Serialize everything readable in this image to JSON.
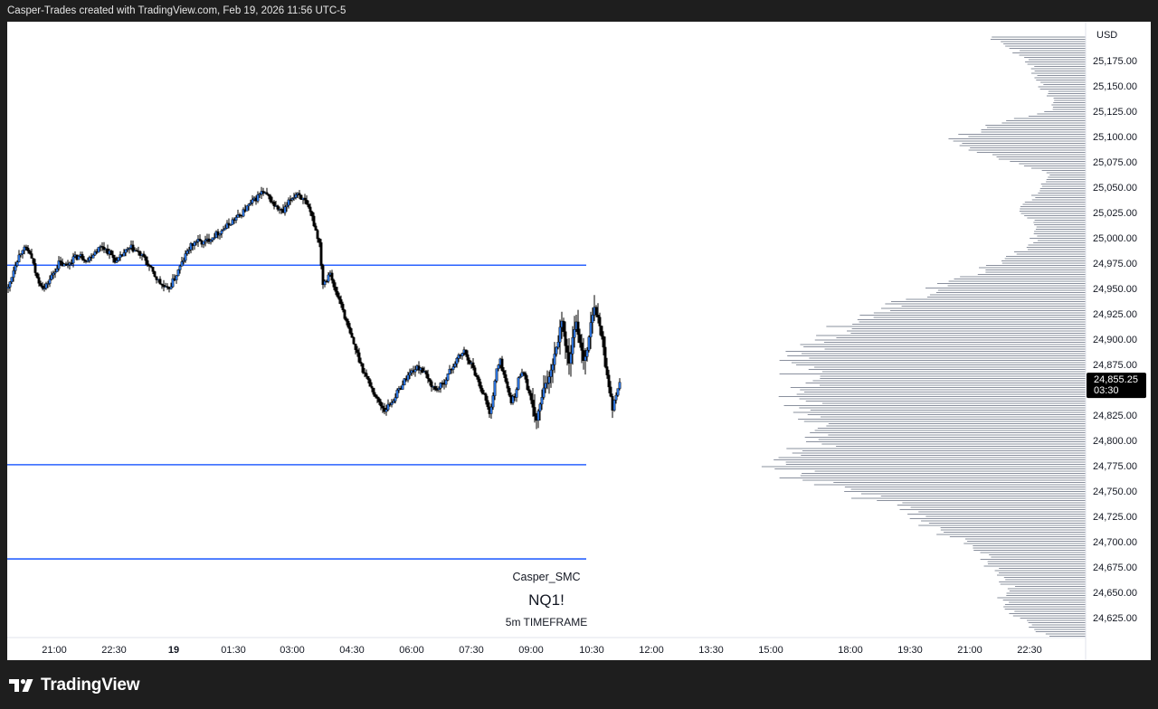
{
  "header": {
    "caption": "Casper-Trades created with TradingView.com, Feb 19, 2026 11:56 UTC-5"
  },
  "footer": {
    "brand": "TradingView",
    "logo_icon": "tradingview-logo-icon"
  },
  "watermark": {
    "author": "Casper_SMC",
    "symbol": "NQ1!",
    "timeframe": "5m TIMEFRAME"
  },
  "price_axis": {
    "currency": "USD",
    "current_price": "24,855.25",
    "countdown": "03:30"
  },
  "colors": {
    "level_line": "#2962ff",
    "bull_body": "#2a6fd6",
    "bear_body": "#000000",
    "wick": "#000000",
    "volume_profile": "#8a909e",
    "price_tag_bg": "#000000"
  },
  "chart_data": {
    "type": "candlestick",
    "symbol": "NQ1!",
    "interval": "5m",
    "y_ticks": [
      25175,
      25150,
      25125,
      25100,
      25075,
      25050,
      25025,
      25000,
      24975,
      24950,
      24925,
      24900,
      24875,
      24825,
      24800,
      24775,
      24750,
      24725,
      24700,
      24675,
      24650,
      24625
    ],
    "y_tick_labels": [
      "25,175.00",
      "25,150.00",
      "25,125.00",
      "25,100.00",
      "25,075.00",
      "25,050.00",
      "25,025.00",
      "25,000.00",
      "24,975.00",
      "24,950.00",
      "24,925.00",
      "24,900.00",
      "24,875.00",
      "24,825.00",
      "24,800.00",
      "24,775.00",
      "24,750.00",
      "24,725.00",
      "24,700.00",
      "24,675.00",
      "24,650.00",
      "24,625.00"
    ],
    "ylim": [
      24605,
      25200
    ],
    "x_ticks": [
      {
        "label": "21:00",
        "bold": false
      },
      {
        "label": "22:30",
        "bold": false
      },
      {
        "label": "19",
        "bold": true
      },
      {
        "label": "01:30",
        "bold": false
      },
      {
        "label": "03:00",
        "bold": false
      },
      {
        "label": "04:30",
        "bold": false
      },
      {
        "label": "06:00",
        "bold": false
      },
      {
        "label": "07:30",
        "bold": false
      },
      {
        "label": "09:00",
        "bold": false
      },
      {
        "label": "10:30",
        "bold": false
      },
      {
        "label": "12:00",
        "bold": false
      },
      {
        "label": "13:30",
        "bold": false
      },
      {
        "label": "15:00",
        "bold": false
      },
      {
        "label": "18:00",
        "bold": false
      },
      {
        "label": "19:30",
        "bold": false
      },
      {
        "label": "21:00",
        "bold": false
      },
      {
        "label": "22:30",
        "bold": false
      }
    ],
    "horizontal_levels": [
      24973,
      24776,
      24683
    ],
    "price_path": [
      [
        0,
        24950
      ],
      [
        4,
        24975
      ],
      [
        8,
        24990
      ],
      [
        12,
        24985
      ],
      [
        16,
        24960
      ],
      [
        20,
        24950
      ],
      [
        24,
        24962
      ],
      [
        28,
        24975
      ],
      [
        32,
        24972
      ],
      [
        36,
        24980
      ],
      [
        40,
        24982
      ],
      [
        44,
        24978
      ],
      [
        48,
        24987
      ],
      [
        52,
        24992
      ],
      [
        56,
        24985
      ],
      [
        60,
        24976
      ],
      [
        64,
        24985
      ],
      [
        68,
        24990
      ],
      [
        72,
        24985
      ],
      [
        76,
        24978
      ],
      [
        80,
        24965
      ],
      [
        84,
        24955
      ],
      [
        88,
        24948
      ],
      [
        92,
        24960
      ],
      [
        96,
        24975
      ],
      [
        100,
        24990
      ],
      [
        104,
        24997
      ],
      [
        108,
        24995
      ],
      [
        112,
        25000
      ],
      [
        116,
        25005
      ],
      [
        120,
        25010
      ],
      [
        124,
        25017
      ],
      [
        128,
        25022
      ],
      [
        132,
        25030
      ],
      [
        136,
        25037
      ],
      [
        140,
        25045
      ],
      [
        144,
        25040
      ],
      [
        148,
        25030
      ],
      [
        152,
        25025
      ],
      [
        156,
        25038
      ],
      [
        160,
        25045
      ],
      [
        164,
        25035
      ],
      [
        168,
        25020
      ],
      [
        172,
        24995
      ],
      [
        174,
        24955
      ],
      [
        176,
        24960
      ],
      [
        178,
        24968
      ],
      [
        180,
        24950
      ],
      [
        184,
        24935
      ],
      [
        188,
        24910
      ],
      [
        192,
        24890
      ],
      [
        196,
        24870
      ],
      [
        200,
        24855
      ],
      [
        204,
        24840
      ],
      [
        208,
        24830
      ],
      [
        212,
        24838
      ],
      [
        216,
        24850
      ],
      [
        220,
        24862
      ],
      [
        224,
        24870
      ],
      [
        228,
        24872
      ],
      [
        232,
        24860
      ],
      [
        236,
        24850
      ],
      [
        240,
        24855
      ],
      [
        244,
        24868
      ],
      [
        248,
        24880
      ],
      [
        252,
        24888
      ],
      [
        256,
        24875
      ],
      [
        260,
        24858
      ],
      [
        264,
        24840
      ],
      [
        266,
        24825
      ],
      [
        268,
        24845
      ],
      [
        270,
        24870
      ],
      [
        272,
        24878
      ],
      [
        274,
        24865
      ],
      [
        276,
        24850
      ],
      [
        278,
        24840
      ],
      [
        280,
        24842
      ],
      [
        282,
        24860
      ],
      [
        284,
        24870
      ],
      [
        286,
        24860
      ],
      [
        288,
        24845
      ],
      [
        290,
        24830
      ],
      [
        292,
        24820
      ],
      [
        294,
        24835
      ],
      [
        296,
        24850
      ],
      [
        298,
        24858
      ],
      [
        300,
        24870
      ],
      [
        302,
        24885
      ],
      [
        304,
        24900
      ],
      [
        306,
        24920
      ],
      [
        308,
        24895
      ],
      [
        310,
        24875
      ],
      [
        312,
        24900
      ],
      [
        314,
        24915
      ],
      [
        316,
        24898
      ],
      [
        318,
        24880
      ],
      [
        320,
        24890
      ],
      [
        322,
        24915
      ],
      [
        324,
        24930
      ],
      [
        326,
        24920
      ],
      [
        328,
        24905
      ],
      [
        330,
        24875
      ],
      [
        332,
        24855
      ],
      [
        334,
        24830
      ],
      [
        336,
        24845
      ],
      [
        338,
        24858
      ]
    ],
    "x_range": [
      -8,
      650
    ],
    "volume_profile_shape": [
      [
        24606,
        40
      ],
      [
        24615,
        60
      ],
      [
        24625,
        75
      ],
      [
        24635,
        85
      ],
      [
        24645,
        95
      ],
      [
        24655,
        85
      ],
      [
        24665,
        100
      ],
      [
        24675,
        105
      ],
      [
        24685,
        115
      ],
      [
        24695,
        130
      ],
      [
        24705,
        150
      ],
      [
        24715,
        175
      ],
      [
        24725,
        185
      ],
      [
        24735,
        210
      ],
      [
        24745,
        250
      ],
      [
        24755,
        290
      ],
      [
        24765,
        320
      ],
      [
        24775,
        340
      ],
      [
        24785,
        325
      ],
      [
        24795,
        300
      ],
      [
        24805,
        285
      ],
      [
        24815,
        290
      ],
      [
        24825,
        300
      ],
      [
        24835,
        315
      ],
      [
        24845,
        320
      ],
      [
        24855,
        325
      ],
      [
        24865,
        320
      ],
      [
        24875,
        315
      ],
      [
        24885,
        320
      ],
      [
        24895,
        320
      ],
      [
        24905,
        290
      ],
      [
        24915,
        270
      ],
      [
        24925,
        250
      ],
      [
        24935,
        210
      ],
      [
        24945,
        185
      ],
      [
        24955,
        155
      ],
      [
        24965,
        125
      ],
      [
        24975,
        100
      ],
      [
        24985,
        75
      ],
      [
        24995,
        60
      ],
      [
        25005,
        55
      ],
      [
        25015,
        60
      ],
      [
        25025,
        70
      ],
      [
        25035,
        65
      ],
      [
        25045,
        55
      ],
      [
        25055,
        45
      ],
      [
        25065,
        40
      ],
      [
        25075,
        90
      ],
      [
        25085,
        120
      ],
      [
        25095,
        150
      ],
      [
        25105,
        125
      ],
      [
        25115,
        95
      ],
      [
        25125,
        40
      ],
      [
        25135,
        35
      ],
      [
        25145,
        45
      ],
      [
        25155,
        55
      ],
      [
        25165,
        60
      ],
      [
        25175,
        65
      ],
      [
        25185,
        80
      ],
      [
        25195,
        105
      ],
      [
        25200,
        105
      ]
    ]
  }
}
